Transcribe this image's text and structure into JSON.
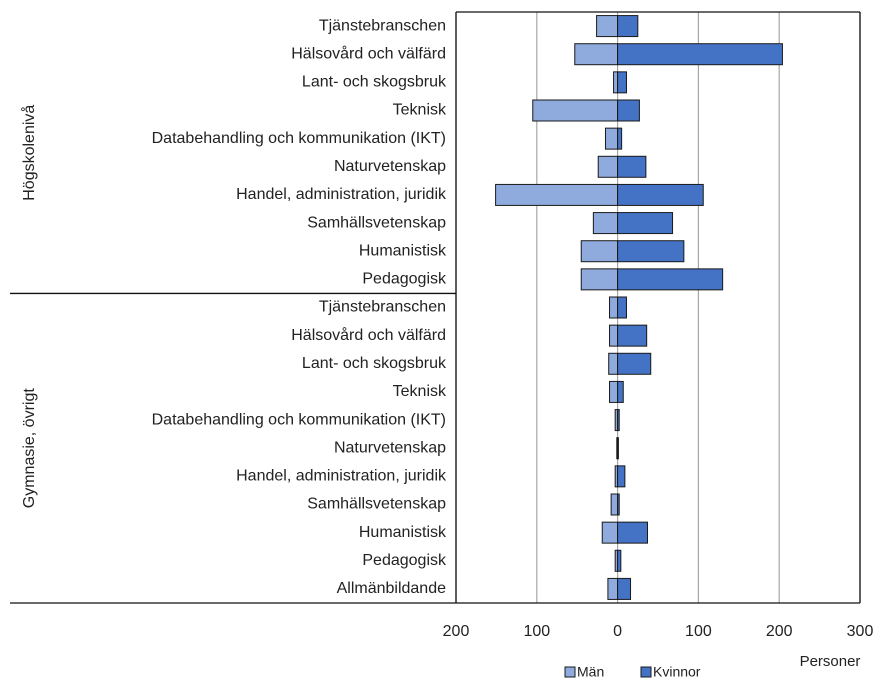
{
  "chart_data": {
    "type": "bar",
    "orientation": "horizontal",
    "groups": [
      {
        "name": "Högskolenivå",
        "categories": [
          "Tjänstebranschen",
          "Hälsovård och välfärd",
          "Lant- och skogsbruk",
          "Teknisk",
          "Databehandling och kommunikation (IKT)",
          "Naturvetenskap",
          "Handel, administration, juridik",
          "Samhällsvetenskap",
          "Humanistisk",
          "Pedagogisk"
        ]
      },
      {
        "name": "Gymnasie, övrigt",
        "categories": [
          "Tjänstebranschen",
          "Hälsovård och välfärd",
          "Lant- och skogsbruk",
          "Teknisk",
          "Databehandling och kommunikation (IKT)",
          "Naturvetenskap",
          "Handel, administration, juridik",
          "Samhällsvetenskap",
          "Humanistisk",
          "Pedagogisk",
          "Allmänbildande"
        ]
      }
    ],
    "series": [
      {
        "name": "Män",
        "color": "#8faadc",
        "values": [
          -26,
          -53,
          -5,
          -105,
          -15,
          -24,
          -151,
          -30,
          -45,
          -45,
          -10,
          -10,
          -11,
          -10,
          -3,
          -1,
          -3,
          -8,
          -19,
          -3,
          -12
        ]
      },
      {
        "name": "Kvinnor",
        "color": "#4472c4",
        "values": [
          25,
          204,
          11,
          27,
          5,
          35,
          106,
          68,
          82,
          130,
          11,
          36,
          41,
          7,
          2,
          1,
          9,
          2,
          37,
          4,
          16
        ]
      }
    ],
    "xlabel": "Personer",
    "xlim": [
      -200,
      300
    ],
    "xticks": [
      {
        "value": -200,
        "label": "200"
      },
      {
        "value": -100,
        "label": "100"
      },
      0,
      100,
      200,
      300
    ],
    "grid": true,
    "legend": "bottom"
  }
}
